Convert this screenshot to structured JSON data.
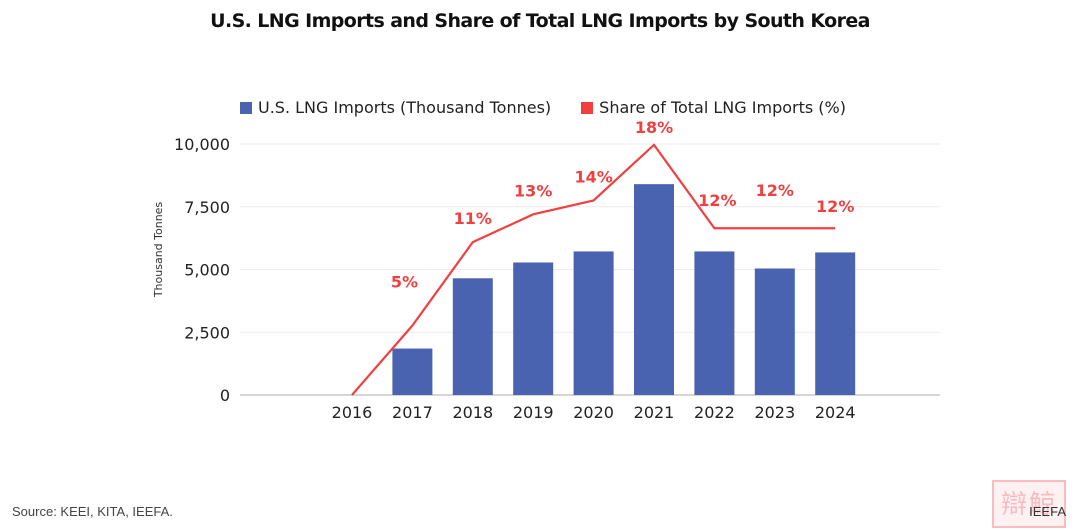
{
  "chart_data": {
    "type": "bar",
    "title": "U.S. LNG Imports and Share of Total LNG Imports by South Korea",
    "categories": [
      "2016",
      "2017",
      "2018",
      "2019",
      "2020",
      "2021",
      "2022",
      "2023",
      "2024"
    ],
    "series": [
      {
        "name": "U.S. LNG Imports (Thousand Tonnes)",
        "type": "bar",
        "axis": "left",
        "color": "#4a63b0",
        "values": [
          0,
          1850,
          4650,
          5280,
          5720,
          8400,
          5720,
          5040,
          5680
        ]
      },
      {
        "name": "Share of Total LNG Imports (%)",
        "type": "line",
        "axis": "right",
        "color": "#f04040",
        "values": [
          0,
          5,
          11,
          13,
          14,
          18,
          12,
          12,
          12
        ],
        "labels": [
          "",
          "5%",
          "11%",
          "13%",
          "14%",
          "18%",
          "12%",
          "12%",
          "12%"
        ]
      }
    ],
    "xlabel": "",
    "ylabel": "Thousand Tonnes",
    "ylim": [
      0,
      10000
    ],
    "yticks": [
      0,
      2500,
      5000,
      7500,
      10000
    ],
    "ytick_labels": [
      "0",
      "2,500",
      "5,000",
      "7,500",
      "10,000"
    ],
    "y2lim": [
      0,
      19.5
    ],
    "grid": true,
    "legend": "top-center"
  },
  "footer": {
    "source": "Source: KEEI, KITA, IEEFA.",
    "brand": "IEEFA",
    "stamp_glyphs": "辯鯨"
  }
}
